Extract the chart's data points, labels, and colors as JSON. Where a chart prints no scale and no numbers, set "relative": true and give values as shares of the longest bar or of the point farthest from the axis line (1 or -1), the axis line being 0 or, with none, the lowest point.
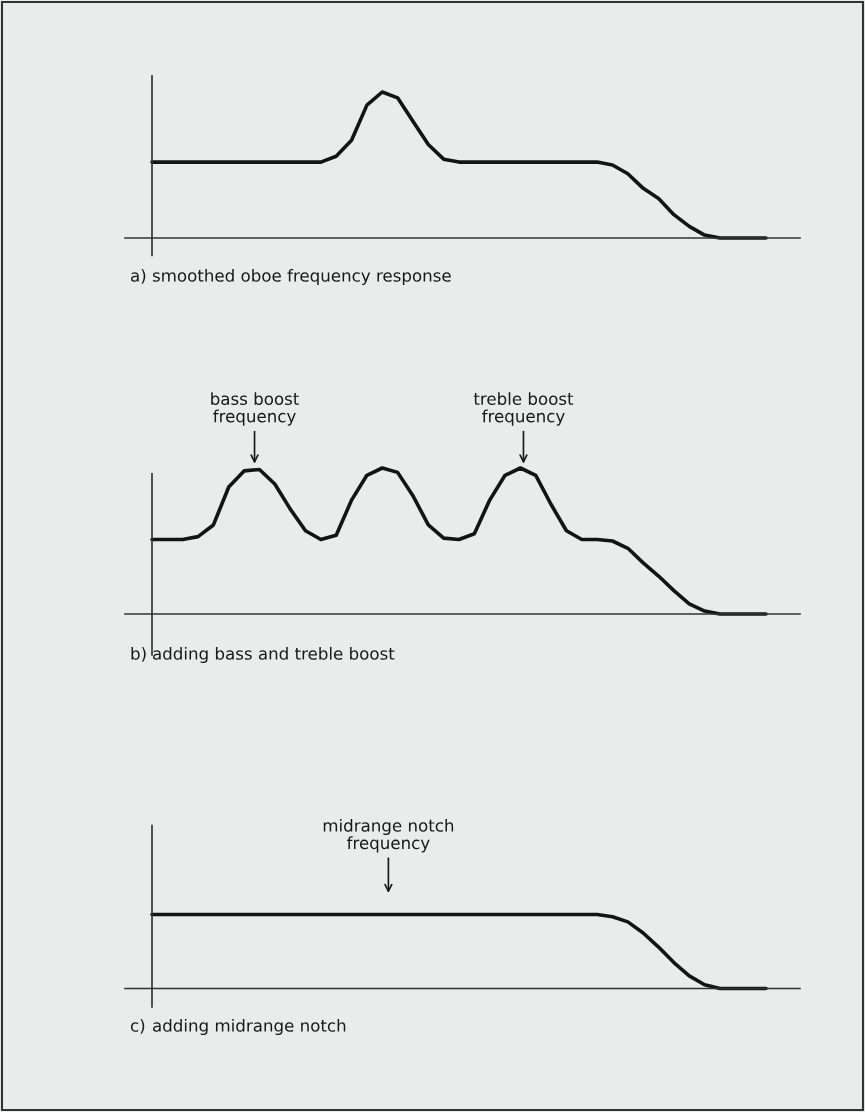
{
  "chart_data": [
    {
      "type": "line",
      "relative": true,
      "xlabel": "smoothed oboe frequency response",
      "annotations": [
        "a)"
      ],
      "categories": [
        null,
        null,
        null,
        null,
        null,
        null,
        null,
        null,
        null,
        null,
        null,
        null,
        null,
        null,
        null,
        null,
        null,
        null,
        null,
        null,
        null,
        null,
        null,
        null,
        null,
        null,
        null,
        null,
        null,
        null,
        null,
        null,
        null,
        null,
        null,
        null,
        null,
        null,
        null,
        null,
        null
      ],
      "series": [
        {
          "color": "#141414",
          "values": [
            0.52,
            0.52,
            0.52,
            0.52,
            0.52,
            0.52,
            0.52,
            0.52,
            0.52,
            0.52,
            0.52,
            0.52,
            0.56,
            0.67,
            0.91,
            1,
            0.96,
            0.8,
            0.64,
            0.54,
            0.52,
            0.52,
            0.52,
            0.52,
            0.52,
            0.52,
            0.52,
            0.52,
            0.52,
            0.52,
            0.5,
            0.44,
            0.34,
            0.27,
            0.16,
            0.08,
            0.02,
            0,
            0,
            0,
            0
          ]
        }
      ]
    },
    {
      "type": "line",
      "relative": true,
      "xlabel": "adding bass and treble boost",
      "annotations": [
        "b)",
        "bass boost\nfrequency",
        "treble boost\nfrequency"
      ],
      "categories": [
        null,
        null,
        null,
        null,
        null,
        null,
        null,
        null,
        null,
        null,
        null,
        null,
        null,
        null,
        null,
        null,
        null,
        null,
        null,
        null,
        null,
        null,
        null,
        null,
        null,
        null,
        null,
        null,
        null,
        null,
        null,
        null,
        null,
        null,
        null,
        null,
        null,
        null,
        null,
        null,
        null
      ],
      "series": [
        {
          "color": "#141414",
          "values": [
            0.51,
            0.51,
            0.51,
            0.53,
            0.61,
            0.87,
            0.98,
            0.99,
            0.89,
            0.72,
            0.57,
            0.51,
            0.54,
            0.78,
            0.95,
            1,
            0.97,
            0.81,
            0.61,
            0.52,
            0.51,
            0.55,
            0.78,
            0.95,
            1,
            0.95,
            0.75,
            0.57,
            0.51,
            0.51,
            0.5,
            0.45,
            0.35,
            0.26,
            0.16,
            0.07,
            0.02,
            0,
            0,
            0,
            0
          ]
        }
      ]
    },
    {
      "type": "line",
      "relative": true,
      "xlabel": "adding midrange notch",
      "annotations": [
        "c)",
        "midrange notch\nfrequency"
      ],
      "categories": [
        null,
        null,
        null,
        null,
        null,
        null,
        null,
        null,
        null,
        null,
        null,
        null,
        null,
        null,
        null,
        null,
        null,
        null,
        null,
        null,
        null,
        null,
        null,
        null,
        null,
        null,
        null,
        null,
        null,
        null,
        null,
        null,
        null,
        null,
        null,
        null,
        null,
        null,
        null,
        null,
        null
      ],
      "series": [
        {
          "color": "#141414",
          "values": [
            1,
            1,
            1,
            1,
            1,
            1,
            1,
            1,
            1,
            1,
            1,
            1,
            1,
            1,
            1,
            1,
            1,
            1,
            1,
            1,
            1,
            1,
            1,
            1,
            1,
            1,
            1,
            1,
            1,
            1,
            0.97,
            0.9,
            0.75,
            0.56,
            0.35,
            0.17,
            0.05,
            0,
            0,
            0,
            0
          ]
        }
      ]
    }
  ]
}
